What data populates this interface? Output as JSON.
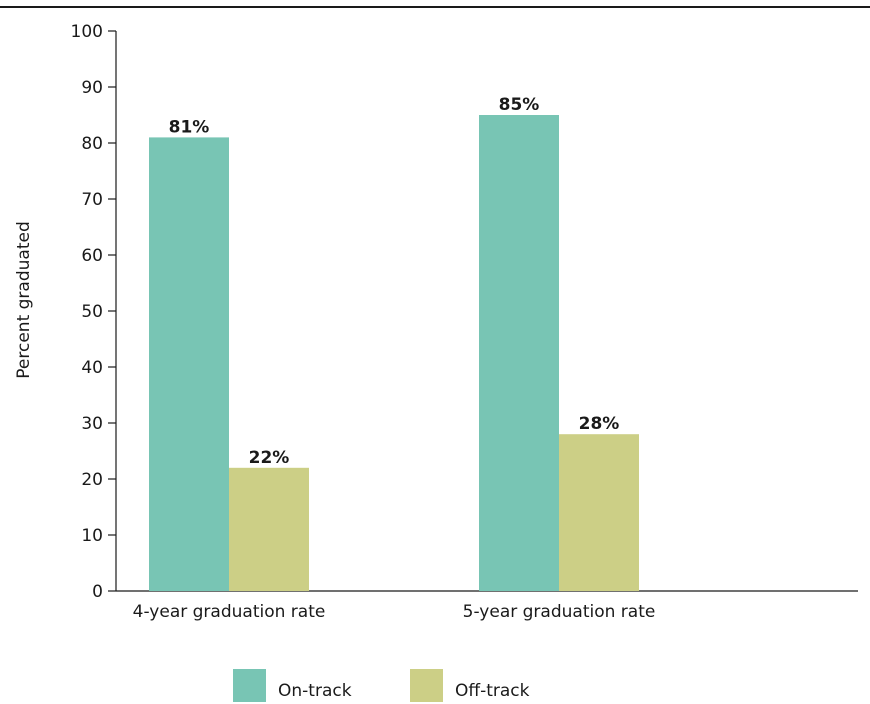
{
  "chart_data": {
    "type": "bar",
    "categories": [
      "4-year graduation rate",
      "5-year graduation rate"
    ],
    "series": [
      {
        "name": "On-track",
        "values": [
          81,
          85
        ],
        "labels": [
          "81%",
          "85%"
        ],
        "color": "#78c5b4"
      },
      {
        "name": "Off-track",
        "values": [
          22,
          28
        ],
        "labels": [
          "22%",
          "28%"
        ],
        "color": "#cccf86"
      }
    ],
    "ylabel": "Percent graduated",
    "ylim": [
      0,
      100
    ],
    "yticks": [
      "0",
      "10",
      "20",
      "30",
      "40",
      "50",
      "60",
      "70",
      "80",
      "90",
      "100"
    ],
    "grid": false,
    "legend_position": "bottom-center"
  }
}
